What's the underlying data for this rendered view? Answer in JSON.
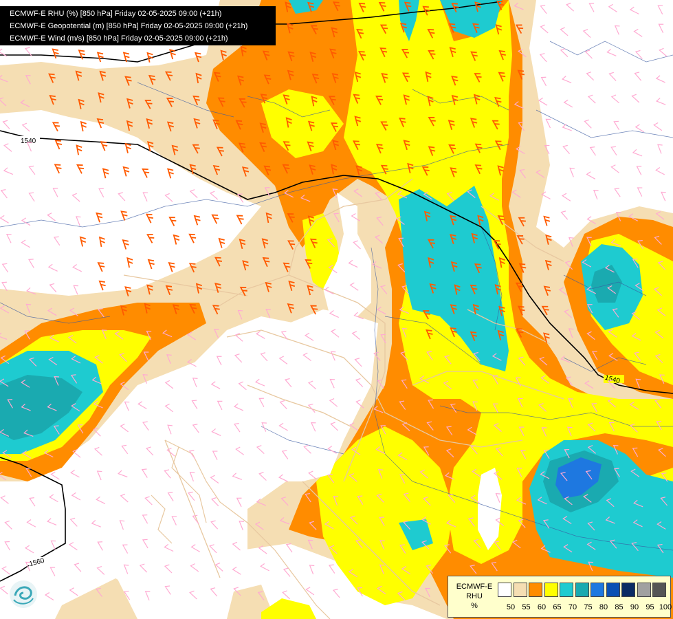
{
  "title_lines": [
    "ECMWF-E RHU (%) [850 hPa] Friday 02-05-2025 09:00 (+21h)",
    "ECMWF-E Geopotential (m) [850 hPa] Friday 02-05-2025 09:00 (+21h)",
    "ECMWF-E Wind (m/s) [850 hPa] Friday 02-05-2025 09:00 (+21h)"
  ],
  "contour_labels": {
    "a": "1540",
    "b": "1540",
    "c": "1560"
  },
  "legend": {
    "title_line1": "ECMWF-E",
    "title_line2": "RHU",
    "title_line3": "%",
    "swatch_colors": [
      "#ffffff",
      "#f5deb3",
      "#ff8c00",
      "#ffff00",
      "#1ecbd0",
      "#1aaab0",
      "#1e78e0",
      "#0a50b4",
      "#0a2a64",
      "#a0a0a0",
      "#555555"
    ],
    "ticks": [
      "50",
      "55",
      "60",
      "65",
      "70",
      "75",
      "80",
      "85",
      "90",
      "95",
      "100"
    ]
  },
  "colors": {
    "rh_50_55": "#f5deb3",
    "rh_55_60": "#ff8c00",
    "rh_60_65": "#ffff00",
    "rh_65_70": "#1ecbd0",
    "rh_70_75": "#1aaab0",
    "rh_75_80": "#1e78e0",
    "wind_barb_light": "#ffaad2",
    "wind_barb_strong": "#ff5a00",
    "geopotential_contour": "#000000",
    "river": "#3a5aa0"
  }
}
